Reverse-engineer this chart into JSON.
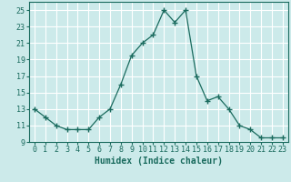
{
  "x": [
    0,
    1,
    2,
    3,
    4,
    5,
    6,
    7,
    8,
    9,
    10,
    11,
    12,
    13,
    14,
    15,
    16,
    17,
    18,
    19,
    20,
    21,
    22,
    23
  ],
  "y": [
    13,
    12,
    11,
    10.5,
    10.5,
    10.5,
    12,
    13,
    16,
    19.5,
    21,
    22,
    25,
    23.5,
    25,
    17,
    14,
    14.5,
    13,
    11,
    10.5,
    9.5,
    9.5,
    9.5
  ],
  "line_color": "#1a6b5e",
  "marker": "+",
  "marker_size": 4,
  "bg_color": "#cceaea",
  "grid_color": "#ffffff",
  "xlabel": "Humidex (Indice chaleur)",
  "xlim": [
    -0.5,
    23.5
  ],
  "ylim": [
    9,
    26
  ],
  "yticks": [
    9,
    11,
    13,
    15,
    17,
    19,
    21,
    23,
    25
  ],
  "xticks": [
    0,
    1,
    2,
    3,
    4,
    5,
    6,
    7,
    8,
    9,
    10,
    11,
    12,
    13,
    14,
    15,
    16,
    17,
    18,
    19,
    20,
    21,
    22,
    23
  ],
  "xlabel_fontsize": 7,
  "tick_fontsize": 6
}
